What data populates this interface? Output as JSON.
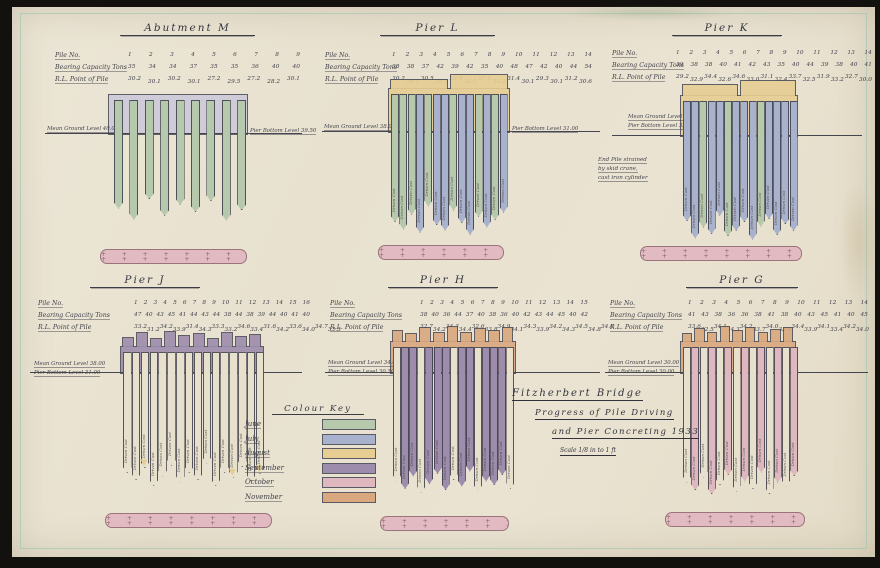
{
  "drawing": {
    "title_block": {
      "line1": "Fitzherbert Bridge",
      "line2": "Progress of Pile Driving",
      "line3": "and Pier Concreting 1933",
      "scale": "Scale 1/8 in to 1 ft"
    },
    "colour_key": {
      "title": "Colour Key",
      "entries": [
        {
          "label": "June",
          "month": "june"
        },
        {
          "label": "July",
          "month": "july"
        },
        {
          "label": "August",
          "month": "august"
        },
        {
          "label": "September",
          "month": "september"
        },
        {
          "label": "October",
          "month": "october"
        },
        {
          "label": "November",
          "month": "november"
        }
      ]
    },
    "months": {
      "june": "#b7c9ac",
      "july": "#a9b2cc",
      "august": "#e6cd92",
      "september": "#9d8cac",
      "october": "#dfb8bf",
      "november": "#d9a87e",
      "blank": "#e7e0cc"
    },
    "ink_color": "#3c3c46",
    "panels": [
      {
        "id": "abutment-m",
        "title": "Abutment M",
        "table": {
          "pile_no_label": "Pile No.",
          "bearing_label": "Bearing Capacity Tons",
          "rl_label": "R.L. Point of Pile",
          "pile_no": [
            "1",
            "2",
            "3",
            "4",
            "5",
            "6",
            "7",
            "8",
            "9"
          ],
          "bearing": [
            "35",
            "34",
            "34",
            "37",
            "35",
            "35",
            "36",
            "40",
            "40"
          ],
          "rl": [
            "30.2",
            "30.1",
            "30.2",
            "30.1",
            "27.2",
            "29.5",
            "27.2",
            "28.2",
            "30.1"
          ]
        },
        "ground_label": "Mean Ground Level 40.00",
        "bottom_label": "Pier Bottom Level 39.50",
        "cap_color": "#cdc9da",
        "piles": {
          "colors": [
            "june",
            "june",
            "june",
            "june",
            "june",
            "june",
            "june",
            "june",
            "june"
          ],
          "lens": [
            0.8,
            0.92,
            0.7,
            0.88,
            0.76,
            0.84,
            0.72,
            0.93,
            0.82
          ],
          "texts": null,
          "yellow_tips": []
        },
        "note": null
      },
      {
        "id": "pier-l",
        "title": "Pier L",
        "table": {
          "pile_no_label": "Pile No.",
          "bearing_label": "Bearing Capacity Tons",
          "rl_label": "R.L. Point of Pile",
          "pile_no": [
            "1",
            "2",
            "3",
            "4",
            "5",
            "6",
            "7",
            "8",
            "9",
            "10",
            "11",
            "12",
            "13",
            "14"
          ],
          "bearing": [
            "38",
            "38",
            "37",
            "42",
            "39",
            "42",
            "35",
            "40",
            "48",
            "47",
            "42",
            "40",
            "44",
            "54"
          ],
          "rl": [
            "30.2",
            "29.1",
            "30.5",
            "26.5",
            "28.4",
            "30.0",
            "27.5",
            "30.2",
            "31.4",
            "30.1",
            "29.3",
            "30.1",
            "31.2",
            "30.6"
          ]
        },
        "ground_label": "Mean Ground Level 38.00",
        "bottom_label": "Pier Bottom Level 31.00",
        "cap_month": "august",
        "piles": {
          "colors": [
            "june",
            "june",
            "june",
            "july",
            "june",
            "july",
            "july",
            "june",
            "july",
            "july",
            "june",
            "july",
            "june",
            "july"
          ],
          "lens": [
            0.85,
            0.92,
            0.78,
            0.95,
            0.7,
            0.88,
            0.93,
            0.74,
            0.86,
            0.97,
            0.8,
            0.9,
            0.83,
            0.76
          ],
          "texts": [
            "Driven",
            "Cast"
          ],
          "yellow_tips": []
        },
        "note": null
      },
      {
        "id": "pier-k",
        "title": "Pier K",
        "table": {
          "pile_no_label": "Pile No.",
          "bearing_label": "Bearing Capacity Tons",
          "rl_label": "R.L. Point of Pile",
          "pile_no": [
            "1",
            "2",
            "3",
            "4",
            "5",
            "6",
            "7",
            "8",
            "9",
            "10",
            "11",
            "12",
            "13",
            "14"
          ],
          "bearing": [
            "39",
            "38",
            "38",
            "40",
            "41",
            "42",
            "43",
            "35",
            "40",
            "44",
            "39",
            "38",
            "40",
            "41"
          ],
          "rl": [
            "29.2",
            "32.9",
            "34.4",
            "32.6",
            "34.6",
            "33.0",
            "31.1",
            "32.4",
            "33.7",
            "32.5",
            "31.9",
            "33.2",
            "32.7",
            "30.0"
          ]
        },
        "ground_label": "Mean Ground Level 38.00",
        "bottom_label": "Pier Bottom Level 33.00",
        "cap_month": "august",
        "piles": {
          "colors": [
            "july",
            "july",
            "june",
            "july",
            "july",
            "june",
            "july",
            "july",
            "july",
            "june",
            "july",
            "july",
            "july",
            "july"
          ],
          "lens": [
            0.78,
            0.94,
            0.84,
            0.9,
            0.73,
            0.92,
            0.87,
            0.79,
            0.95,
            0.83,
            0.76,
            0.91,
            0.81,
            0.87
          ],
          "texts": [
            "Driven",
            "Cast"
          ],
          "yellow_tips": []
        },
        "note": [
          "End Pile strained",
          "by skid crane,",
          "cast iron cylinder"
        ]
      },
      {
        "id": "pier-j",
        "title": "Pier J",
        "table": {
          "pile_no_label": "Pile No.",
          "bearing_label": "Bearing Capacity Tons",
          "rl_label": "R.L. Point of Pile",
          "pile_no": [
            "1",
            "2",
            "3",
            "4",
            "5",
            "6",
            "7",
            "8",
            "9",
            "10",
            "11",
            "12",
            "13",
            "14",
            "15",
            "16"
          ],
          "bearing": [
            "47",
            "40",
            "43",
            "45",
            "41",
            "44",
            "43",
            "44",
            "38",
            "44",
            "38",
            "39",
            "44",
            "40",
            "41",
            "40"
          ],
          "rl": [
            "33.2",
            "31.2",
            "34.2",
            "33.9",
            "31.4",
            "34.3",
            "33.3",
            "33.2",
            "34.6",
            "33.4",
            "31.6",
            "34.2",
            "33.6",
            "34.0",
            "34.7",
            "33.3"
          ]
        },
        "ground_label": "Mean Ground Level 38.00",
        "bottom_label": "Pier Bottom Level 31.00",
        "cap_month": "september",
        "piles": {
          "colors": [
            "blank",
            "blank",
            "blank",
            "blank",
            "blank",
            "blank",
            "blank",
            "blank",
            "blank",
            "blank",
            "blank",
            "blank",
            "blank",
            "blank",
            "blank",
            "blank"
          ],
          "lens": [
            0.84,
            0.9,
            0.8,
            0.95,
            0.87,
            0.78,
            0.92,
            0.84,
            0.9,
            0.76,
            0.95,
            0.84,
            0.88,
            0.79,
            0.91,
            0.85
          ],
          "texts": [
            "Driven",
            "Cast"
          ],
          "yellow_tips": [
            2,
            12,
            15
          ]
        },
        "note": null
      },
      {
        "id": "pier-h",
        "title": "Pier H",
        "table": {
          "pile_no_label": "Pile No.",
          "bearing_label": "Bearing Capacity Tons",
          "rl_label": "R.L. Point of Pile",
          "pile_no": [
            "1",
            "2",
            "3",
            "4",
            "5",
            "6",
            "7",
            "8",
            "9",
            "10",
            "11",
            "12",
            "13",
            "14",
            "15"
          ],
          "bearing": [
            "38",
            "40",
            "36",
            "44",
            "37",
            "40",
            "38",
            "36",
            "40",
            "42",
            "43",
            "44",
            "45",
            "40",
            "42"
          ],
          "rl": [
            "32.7",
            "34.2",
            "34.3",
            "34.4",
            "32.6",
            "33.8",
            "34.9",
            "34.1",
            "34.3",
            "33.9",
            "34.2",
            "34.3",
            "34.5",
            "34.8",
            "34.6"
          ]
        },
        "ground_label": "Mean Ground Level 34.00",
        "bottom_label": "Pier Bottom Level 30.50",
        "cap_month": "november",
        "piles": {
          "colors": [
            "blank",
            "september",
            "september",
            "blank",
            "september",
            "september",
            "september",
            "blank",
            "september",
            "september",
            "blank",
            "september",
            "september",
            "september",
            "blank"
          ],
          "lens": [
            0.86,
            0.92,
            0.82,
            0.95,
            0.88,
            0.8,
            0.93,
            0.85,
            0.9,
            0.78,
            0.94,
            0.86,
            0.89,
            0.81,
            0.92
          ],
          "texts": [
            "Driven",
            "Cast"
          ],
          "yellow_tips": []
        },
        "note": null
      },
      {
        "id": "pier-g",
        "title": "Pier G",
        "table": {
          "pile_no_label": "Pile No.",
          "bearing_label": "Bearing Capacity Tons",
          "rl_label": "R.L. Point of Pile",
          "pile_no": [
            "1",
            "2",
            "3",
            "4",
            "5",
            "6",
            "7",
            "8",
            "9",
            "10",
            "11",
            "12",
            "13",
            "14"
          ],
          "bearing": [
            "41",
            "43",
            "38",
            "36",
            "36",
            "38",
            "41",
            "38",
            "40",
            "43",
            "45",
            "41",
            "40",
            "45"
          ],
          "rl": [
            "33.6",
            "32.5",
            "34.1",
            "34.3",
            "34.2",
            "33.7",
            "34.0",
            "33.0",
            "34.4",
            "33.9",
            "34.1",
            "33.4",
            "34.2",
            "34.0"
          ]
        },
        "ground_label": "Mean Ground Level 30.00",
        "bottom_label": "Pier Bottom Level 30.00",
        "cap_month": "november",
        "piles": {
          "colors": [
            "blank",
            "october",
            "blank",
            "october",
            "blank",
            "october",
            "blank",
            "october",
            "blank",
            "october",
            "blank",
            "october",
            "blank",
            "october"
          ],
          "lens": [
            0.85,
            0.91,
            0.81,
            0.94,
            0.87,
            0.79,
            0.92,
            0.84,
            0.9,
            0.77,
            0.94,
            0.85,
            0.88,
            0.8
          ],
          "texts": [
            "Driven",
            "Cast"
          ],
          "yellow_tips": []
        },
        "note": null
      }
    ]
  }
}
